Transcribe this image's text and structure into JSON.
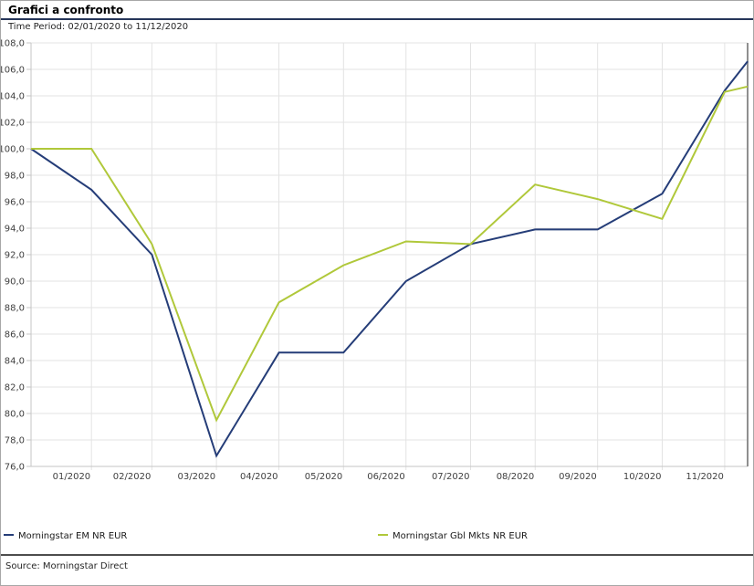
{
  "header": {
    "title": "Grafici a confronto",
    "time_period": "Time Period: 02/01/2020 to 11/12/2020"
  },
  "footer": {
    "source": "Source: Morningstar Direct"
  },
  "legend": {
    "position": "bottom",
    "items": [
      {
        "label": "Morningstar EM NR EUR",
        "color": "#253d78"
      },
      {
        "label": "Morningstar Gbl Mkts NR EUR",
        "color": "#b0c83a"
      }
    ]
  },
  "style_colors": {
    "gridline": "#e3e3e3",
    "axis": "#c5c5c5",
    "plot_right_border": "#8f8f8f",
    "tick_text": "#3f3f3f",
    "title_rule": "#26365a",
    "footer_rule": "#4d4d4d"
  },
  "chart_data": {
    "type": "line",
    "title": "Grafici a confronto",
    "subtitle": "Time Period: 02/01/2020 to 11/12/2020",
    "xlabel": "",
    "ylabel": "",
    "grid": true,
    "legend_position": "bottom",
    "ylim": [
      76,
      108
    ],
    "y_tick_step": 2,
    "y_ticks": [
      108,
      106,
      104,
      102,
      100,
      98,
      96,
      94,
      92,
      90,
      88,
      86,
      84,
      82,
      80,
      78,
      76
    ],
    "y_tick_labels": [
      "108,0",
      "106,0",
      "104,0",
      "102,0",
      "100,0",
      "98,0",
      "96,0",
      "94,0",
      "92,0",
      "90,0",
      "88,0",
      "86,0",
      "84,0",
      "82,0",
      "80,0",
      "78,0",
      "76,0"
    ],
    "x_domain": [
      "2020-01-02",
      "2020-12-11"
    ],
    "x_gridline_dates": [
      "2020-01-31",
      "2020-02-29",
      "2020-03-31",
      "2020-04-30",
      "2020-05-31",
      "2020-06-30",
      "2020-07-31",
      "2020-08-31",
      "2020-09-30",
      "2020-10-31",
      "2020-11-30"
    ],
    "x_tick_labels": [
      "01/2020",
      "02/2020",
      "03/2020",
      "04/2020",
      "05/2020",
      "06/2020",
      "07/2020",
      "08/2020",
      "09/2020",
      "10/2020",
      "11/2020"
    ],
    "point_dates": [
      "2020-01-02",
      "2020-01-31",
      "2020-02-29",
      "2020-03-31",
      "2020-04-30",
      "2020-05-31",
      "2020-06-30",
      "2020-07-31",
      "2020-08-31",
      "2020-09-30",
      "2020-10-31",
      "2020-11-30",
      "2020-12-11"
    ],
    "series": [
      {
        "name": "Morningstar EM NR EUR",
        "color": "#253d78",
        "values": [
          100.0,
          96.9,
          92.0,
          76.8,
          84.6,
          84.6,
          90.0,
          92.8,
          93.9,
          93.9,
          96.6,
          104.4,
          106.6
        ]
      },
      {
        "name": "Morningstar Gbl Mkts NR EUR",
        "color": "#b0c83a",
        "values": [
          100.0,
          100.0,
          92.8,
          79.5,
          88.4,
          91.2,
          93.0,
          92.8,
          97.3,
          96.2,
          94.7,
          104.3,
          104.7
        ]
      }
    ]
  }
}
